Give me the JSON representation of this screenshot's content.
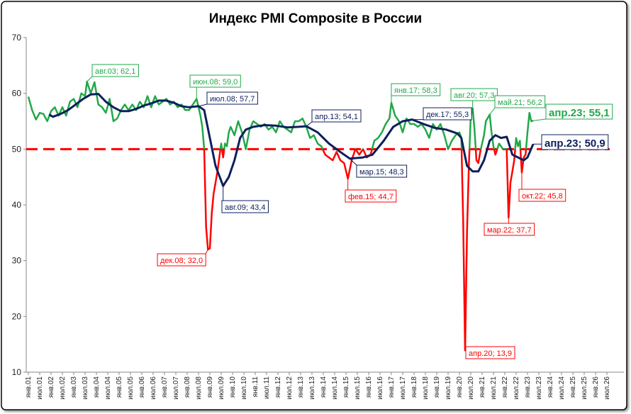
{
  "chart_data": {
    "type": "line",
    "title": "Индекс PMI Composite в России",
    "ylim": [
      10,
      70
    ],
    "yticks": [
      10,
      20,
      30,
      40,
      50,
      60,
      70
    ],
    "grid": false,
    "xticks": [
      "янв.01",
      "июл.01",
      "янв.02",
      "июл.02",
      "янв.03",
      "июл.03",
      "янв.04",
      "июл.04",
      "янв.05",
      "июл.05",
      "янв.06",
      "июл.06",
      "янв.07",
      "июл.07",
      "янв.08",
      "июл.08",
      "янв.09",
      "июл.09",
      "янв.10",
      "июл.10",
      "янв.11",
      "июл.11",
      "янв.12",
      "июл.12",
      "янв.13",
      "июл.13",
      "янв.14",
      "июл.14",
      "янв.15",
      "июл.15",
      "янв.16",
      "июл.16",
      "янв.17",
      "июл.17",
      "янв.18",
      "июл.18",
      "янв.19",
      "июл.19",
      "янв.20",
      "июл.20",
      "янв.21",
      "июл.21",
      "янв.22",
      "июл.22",
      "янв.23",
      "июл.23",
      "янв.24",
      "июл.24",
      "янв.25",
      "июл.25",
      "янв.26",
      "июл.26"
    ],
    "reference_line": {
      "value": 50,
      "color": "#ff0000"
    },
    "series": [
      {
        "color": "#22a84a",
        "below_color": "#ff0000",
        "x": [
          "янв.01",
          "мар.01",
          "май.01",
          "июл.01",
          "сен.01",
          "ноя.01",
          "янв.02",
          "мар.02",
          "май.02",
          "июл.02",
          "сен.02",
          "ноя.02",
          "янв.03",
          "мар.03",
          "май.03",
          "июл.03",
          "авг.03",
          "окт.03",
          "дек.03",
          "фев.04",
          "апр.04",
          "июн.04",
          "авг.04",
          "окт.04",
          "дек.04",
          "фев.05",
          "апр.05",
          "июн.05",
          "авг.05",
          "окт.05",
          "дек.05",
          "фев.06",
          "апр.06",
          "июн.06",
          "авг.06",
          "окт.06",
          "дек.06",
          "фев.07",
          "апр.07",
          "июн.07",
          "авг.07",
          "окт.07",
          "дек.07",
          "фев.08",
          "апр.08",
          "июн.08",
          "июл.08",
          "авг.08",
          "сен.08",
          "окт.08",
          "ноя.08",
          "дек.08",
          "янв.09",
          "фев.09",
          "мар.09",
          "апр.09",
          "май.09",
          "июн.09",
          "июл.09",
          "авг.09",
          "сен.09",
          "окт.09",
          "ноя.09",
          "дек.09",
          "фев.10",
          "апр.10",
          "июн.10",
          "авг.10",
          "окт.10",
          "дек.10",
          "фев.11",
          "апр.11",
          "июн.11",
          "авг.11",
          "окт.11",
          "дек.11",
          "фев.12",
          "апр.12",
          "июн.12",
          "авг.12",
          "окт.12",
          "дек.12",
          "фев.13",
          "апр.13",
          "июн.13",
          "авг.13",
          "окт.13",
          "дек.13",
          "фев.14",
          "апр.14",
          "июн.14",
          "авг.14",
          "окт.14",
          "дек.14",
          "фев.15",
          "апр.15",
          "июн.15",
          "авг.15",
          "окт.15",
          "дек.15",
          "фев.16",
          "апр.16",
          "июн.16",
          "авг.16",
          "окт.16",
          "дек.16",
          "янв.17",
          "мар.17",
          "май.17",
          "июл.17",
          "сен.17",
          "ноя.17",
          "янв.18",
          "мар.18",
          "май.18",
          "июл.18",
          "сен.18",
          "ноя.18",
          "янв.19",
          "мар.19",
          "май.19",
          "июл.19",
          "сен.19",
          "ноя.19",
          "янв.20",
          "фев.20",
          "мар.20",
          "апр.20",
          "май.20",
          "июн.20",
          "июл.20",
          "авг.20",
          "сен.20",
          "окт.20",
          "ноя.20",
          "дек.20",
          "фев.21",
          "мар.21",
          "май.21",
          "июн.21",
          "июл.21",
          "авг.21",
          "окт.21",
          "дек.21",
          "янв.22",
          "фев.22",
          "мар.22",
          "апр.22",
          "май.22",
          "июн.22",
          "июл.22",
          "авг.22",
          "сен.22",
          "окт.22",
          "ноя.22",
          "дек.22",
          "янв.23",
          "фев.23",
          "мар.23",
          "апр.23"
        ],
        "values": [
          59.4,
          57.0,
          55.3,
          56.5,
          56.3,
          55.0,
          56.8,
          57.5,
          56.0,
          57.5,
          56.0,
          58.5,
          59.0,
          57.5,
          60.0,
          59.5,
          62.1,
          60.0,
          62.0,
          58.0,
          57.5,
          56.5,
          59.0,
          55.0,
          55.5,
          57.0,
          58.0,
          57.0,
          58.0,
          57.0,
          58.5,
          57.5,
          59.5,
          57.5,
          59.5,
          58.0,
          58.5,
          59.0,
          58.0,
          58.5,
          57.5,
          58.0,
          57.0,
          57.0,
          58.0,
          59.0,
          57.5,
          56.0,
          54.0,
          50.0,
          36.0,
          32.0,
          32.2,
          38.5,
          42.0,
          44.0,
          46.0,
          48.5,
          51.0,
          48.5,
          51.0,
          50.5,
          53.0,
          54.0,
          52.5,
          55.0,
          53.0,
          50.0,
          53.5,
          55.0,
          54.5,
          54.0,
          54.5,
          53.5,
          54.0,
          53.0,
          55.0,
          54.0,
          53.5,
          53.0,
          55.0,
          55.0,
          55.5,
          54.0,
          52.0,
          52.5,
          51.0,
          50.5,
          49.0,
          48.5,
          48.0,
          49.5,
          48.0,
          47.5,
          44.7,
          48.0,
          50.0,
          49.0,
          50.0,
          48.5,
          49.0,
          51.5,
          52.0,
          53.0,
          54.5,
          55.5,
          58.3,
          56.0,
          55.0,
          53.0,
          55.5,
          54.5,
          54.5,
          54.0,
          54.5,
          53.5,
          52.0,
          54.5,
          53.5,
          54.5,
          52.5,
          50.0,
          51.5,
          52.5,
          53.0,
          52.0,
          37.0,
          13.9,
          35.0,
          47.0,
          56.0,
          57.3,
          53.5,
          48.0,
          47.5,
          49.5,
          52.5,
          55.0,
          56.2,
          53.0,
          50.5,
          49.0,
          51.0,
          50.0,
          50.0,
          50.0,
          37.7,
          44.0,
          46.0,
          48.0,
          52.0,
          50.5,
          51.5,
          45.8,
          48.5,
          49.0,
          53.0,
          56.5,
          55.0,
          55.1
        ]
      },
      {
        "color": "#0d1f5c",
        "x": [
          "дек.01",
          "фев.02",
          "июн.02",
          "окт.02",
          "фев.03",
          "июн.03",
          "окт.03",
          "фев.04",
          "июн.04",
          "окт.04",
          "фев.05",
          "июн.05",
          "окт.05",
          "фев.06",
          "июн.06",
          "окт.06",
          "фев.07",
          "июн.07",
          "окт.07",
          "фев.08",
          "июл.08",
          "окт.08",
          "янв.09",
          "апр.09",
          "авг.09",
          "ноя.09",
          "фев.10",
          "май.10",
          "авг.10",
          "дек.10",
          "июн.11",
          "дек.11",
          "июн.12",
          "дек.12",
          "апр.13",
          "окт.13",
          "апр.14",
          "окт.14",
          "мар.15",
          "окт.15",
          "мар.16",
          "сен.16",
          "фев.17",
          "июл.17",
          "дек.17",
          "июн.18",
          "дек.18",
          "июн.19",
          "дек.19",
          "фев.20",
          "май.20",
          "авг.20",
          "ноя.20",
          "фев.21",
          "май.21",
          "авг.21",
          "ноя.21",
          "фев.22",
          "май.22",
          "авг.22",
          "ноя.22",
          "янв.23",
          "апр.23"
        ],
        "values": [
          56.2,
          55.8,
          56.3,
          57.0,
          58.0,
          59.0,
          59.8,
          59.9,
          58.5,
          57.5,
          56.8,
          56.8,
          57.2,
          57.8,
          58.2,
          58.7,
          58.7,
          58.3,
          57.7,
          57.5,
          57.7,
          57.0,
          52.0,
          47.0,
          43.4,
          45.0,
          48.0,
          52.0,
          53.5,
          54.0,
          54.3,
          54.2,
          53.9,
          54.0,
          54.1,
          53.0,
          51.0,
          49.5,
          48.3,
          48.5,
          49.0,
          51.5,
          54.0,
          55.0,
          55.3,
          54.5,
          53.8,
          53.5,
          52.8,
          52.0,
          47.0,
          46.0,
          46.0,
          48.0,
          51.5,
          52.5,
          52.0,
          52.2,
          49.0,
          48.5,
          48.0,
          48.5,
          50.9
        ]
      }
    ],
    "annotations": [
      {
        "label": "авг.03; 62,1",
        "x": "авг.03",
        "value": 62.1,
        "color": "#22a84a"
      },
      {
        "label": "июн.08; 59,0",
        "x": "июн.08",
        "value": 59.0,
        "color": "#22a84a"
      },
      {
        "label": "июл.08; 57,7",
        "x": "июл.08",
        "value": 57.7,
        "color": "#0d1f5c"
      },
      {
        "label": "дек.08; 32,0",
        "x": "дек.08",
        "value": 32.0,
        "color": "#ff0000"
      },
      {
        "label": "авг.09; 43,4",
        "x": "авг.09",
        "value": 43.4,
        "color": "#0d1f5c"
      },
      {
        "label": "апр.13; 54,1",
        "x": "апр.13",
        "value": 54.1,
        "color": "#0d1f5c"
      },
      {
        "label": "мар.15; 48,3",
        "x": "мар.15",
        "value": 48.3,
        "color": "#0d1f5c"
      },
      {
        "label": "фев.15; 44,7",
        "x": "фев.15",
        "value": 44.7,
        "color": "#ff0000"
      },
      {
        "label": "янв.17; 58,3",
        "x": "янв.17",
        "value": 58.3,
        "color": "#22a84a"
      },
      {
        "label": "дек.17; 55,3",
        "x": "дек.17",
        "value": 55.3,
        "color": "#0d1f5c"
      },
      {
        "label": "авг.20; 57,3",
        "x": "авг.20",
        "value": 57.3,
        "color": "#22a84a"
      },
      {
        "label": "май.21; 56,2",
        "x": "май.21",
        "value": 56.2,
        "color": "#22a84a"
      },
      {
        "label": "апр.20; 13,9",
        "x": "апр.20",
        "value": 13.9,
        "color": "#ff0000"
      },
      {
        "label": "мар.22; 37,7",
        "x": "мар.22",
        "value": 37.7,
        "color": "#ff0000"
      },
      {
        "label": "окт.22; 45,8",
        "x": "окт.22",
        "value": 45.8,
        "color": "#ff0000"
      },
      {
        "label": "апр.23; 55,1",
        "x": "апр.23",
        "value": 55.1,
        "color": "#22a84a"
      },
      {
        "label": "апр.23; 50,9",
        "x": "апр.23",
        "value": 50.9,
        "color": "#0d1f5c"
      }
    ]
  }
}
